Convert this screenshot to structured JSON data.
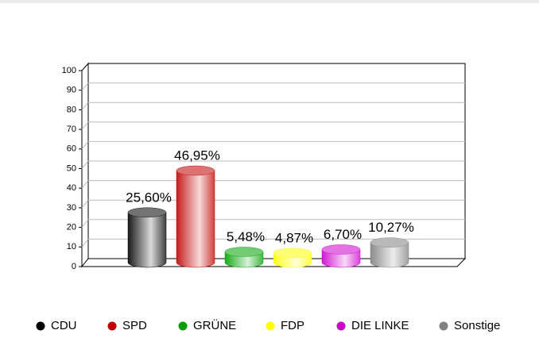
{
  "chart_data": {
    "type": "bar3d",
    "categories": [
      "CDU",
      "SPD",
      "GRÜNE",
      "FDP",
      "DIE LINKE",
      "Sonstige"
    ],
    "values": [
      25.6,
      46.95,
      5.48,
      4.87,
      6.7,
      10.27
    ],
    "value_labels": [
      "25,60%",
      "46,95%",
      "5,48%",
      "4,87%",
      "6,70%",
      "10,27%"
    ],
    "colors": [
      "#000000",
      "#c00000",
      "#00a000",
      "#ffff00",
      "#cc00cc",
      "#808080"
    ],
    "ylim": [
      0,
      100
    ],
    "yticks": [
      0,
      10,
      20,
      30,
      40,
      50,
      60,
      70,
      80,
      90,
      100
    ],
    "grid": true,
    "legend": "bottom"
  }
}
